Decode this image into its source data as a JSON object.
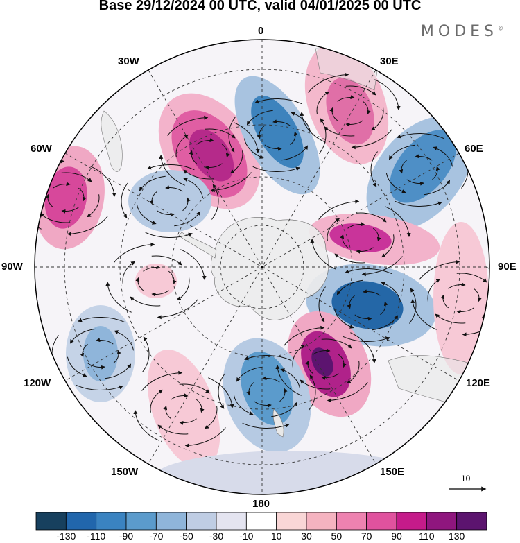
{
  "title": "Base 29/12/2024 00 UTC, valid 04/01/2025 00 UTC",
  "logo": "MODES",
  "logo_mark": "©",
  "longitude_labels": {
    "lon_0": "0",
    "lon_30e": "30E",
    "lon_60e": "60E",
    "lon_90e": "90E",
    "lon_120e": "120E",
    "lon_150e": "150E",
    "lon_180": "180",
    "lon_150w": "150W",
    "lon_120w": "120W",
    "lon_90w": "90W",
    "lon_60w": "60W",
    "lon_30w": "30W"
  },
  "reference_vector": "10",
  "colorbar": {
    "ticks": [
      "-130",
      "-110",
      "-90",
      "-70",
      "-50",
      "-30",
      "-10",
      "10",
      "30",
      "50",
      "70",
      "90",
      "110",
      "130"
    ],
    "colors": [
      "#17405e",
      "#2166ac",
      "#3a83c1",
      "#5b9bcc",
      "#8fb5da",
      "#bfcde4",
      "#e4e4f0",
      "#ffffff",
      "#f9d6d6",
      "#f5b3c0",
      "#ee82b0",
      "#e0529e",
      "#c51b8a",
      "#8f167e",
      "#5c146f"
    ]
  },
  "colors": {
    "land": "#ececec",
    "graticule": "#333333",
    "streamline": "#111111"
  }
}
